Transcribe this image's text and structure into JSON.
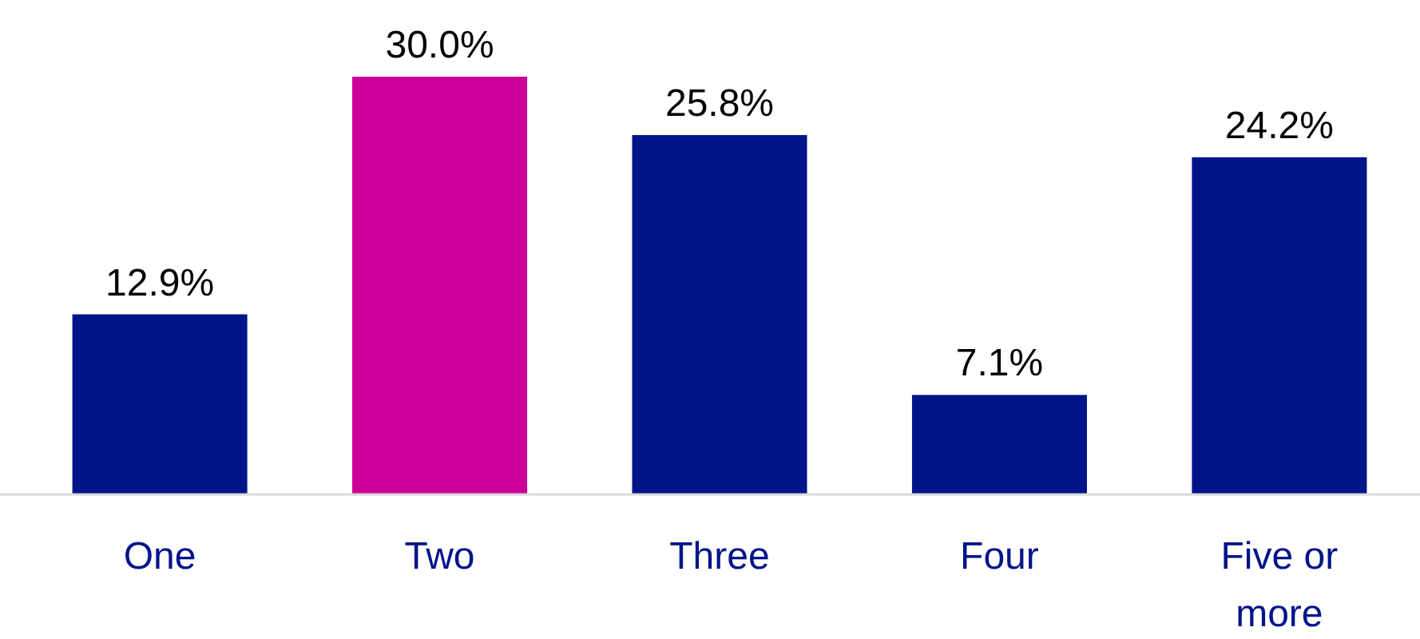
{
  "chart_data": {
    "type": "bar",
    "categories": [
      "One",
      "Two",
      "Three",
      "Four",
      "Five or more"
    ],
    "values": [
      12.9,
      30.0,
      25.8,
      7.1,
      24.2
    ],
    "colors": [
      "#001489",
      "#cc0099",
      "#001489",
      "#001489",
      "#001489"
    ],
    "value_labels": [
      "12.9%",
      "30.0%",
      "25.8%",
      "7.1%",
      "24.2%"
    ]
  }
}
